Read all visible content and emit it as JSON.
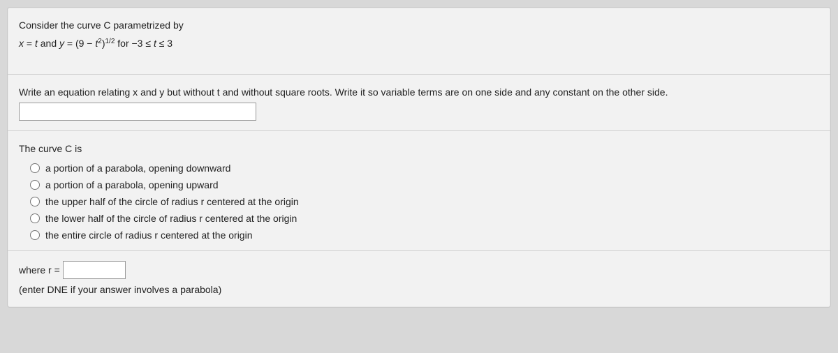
{
  "problem": {
    "intro": "Consider the curve C parametrized by",
    "equation_prefix_x": "x",
    "equation_eq1": " = ",
    "equation_t": "t",
    "equation_and": " and ",
    "equation_y": "y",
    "equation_eq2": " = (9 − ",
    "equation_t2": "t",
    "equation_exp2": "2",
    "equation_close": ")",
    "equation_half": "1/2",
    "equation_for": " for −3 ≤ ",
    "equation_tvar": "t",
    "equation_range_end": " ≤ 3"
  },
  "part1": {
    "prompt": "Write an equation relating x and y but without t and without square roots. Write it so variable terms are on one side and any constant on the other side."
  },
  "part2": {
    "prompt": "The curve C is",
    "options": [
      "a portion of a parabola, opening downward",
      "a portion of a parabola, opening upward",
      "the upper half of the circle of radius r centered at the origin",
      "the lower half of the circle of radius r centered at the origin",
      "the entire circle of radius r centered at the origin"
    ]
  },
  "part3": {
    "where_label": "where r = ",
    "hint": "(enter DNE if your answer involves a parabola)"
  },
  "colors": {
    "panel_bg": "#f2f2f2",
    "page_bg": "#d8d8d8",
    "border": "#cfcfcf",
    "text": "#222222"
  }
}
